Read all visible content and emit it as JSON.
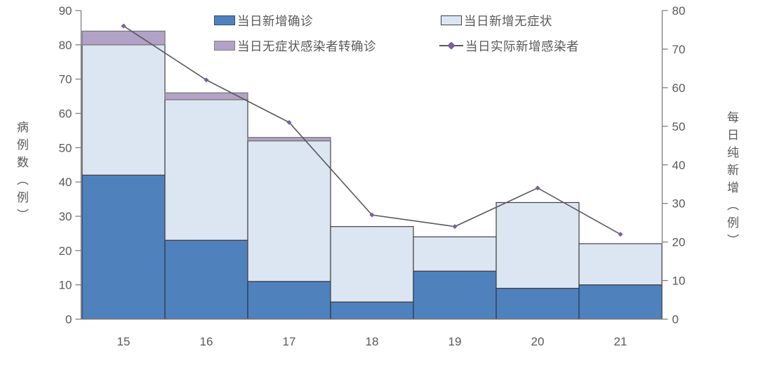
{
  "chart_data": {
    "type": "bar",
    "subtype": "stacked-bars-with-line",
    "categories": [
      "15",
      "16",
      "17",
      "18",
      "19",
      "20",
      "21"
    ],
    "bar_series": [
      {
        "name": "当日新增确诊",
        "values": [
          42,
          23,
          11,
          5,
          14,
          9,
          10
        ],
        "color": "#4F81BD",
        "border": "#24364F"
      },
      {
        "name": "当日新增无症状",
        "values": [
          38,
          41,
          41,
          22,
          10,
          25,
          12
        ],
        "color": "#DCE6F2",
        "border": "#404040"
      },
      {
        "name": "当日无症状感染者转确诊",
        "values": [
          4,
          2,
          1,
          0,
          0,
          0,
          0
        ],
        "color": "#B3A2C7",
        "border": "#737373"
      }
    ],
    "line_series": {
      "name": "当日实际新增感染者",
      "values": [
        76,
        62,
        51,
        27,
        24,
        34,
        22
      ],
      "axis": "right",
      "color": "#595959",
      "marker": "diamond",
      "marker_color": "#7A5DA2"
    },
    "stacked": true,
    "grid": false,
    "legend_position": "top",
    "left_axis": {
      "title": "病例数（例）",
      "min": 0,
      "max": 90,
      "step": 10
    },
    "right_axis": {
      "title": "每日纯新增（例）",
      "min": 0,
      "max": 80,
      "step": 10
    },
    "title": "",
    "xlabel": ""
  },
  "colors": {
    "axis_line": "#7F7F7F",
    "tick_text": "#595959",
    "background": "#FFFFFF"
  }
}
